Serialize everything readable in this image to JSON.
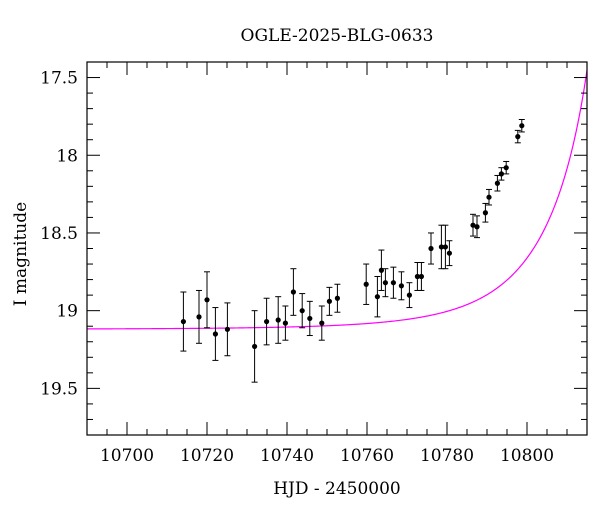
{
  "chart_data": {
    "type": "scatter",
    "title": "OGLE-2025-BLG-0633",
    "xlabel": "HJD - 2450000",
    "ylabel": "I magnitude",
    "xlim": [
      10690,
      10815
    ],
    "ylim": [
      19.8,
      17.4
    ],
    "y_inverted": true,
    "x_ticks": [
      10700,
      10720,
      10740,
      10760,
      10780,
      10800
    ],
    "x_tick_labels": [
      "10700",
      "10720",
      "10740",
      "10760",
      "10780",
      "10800"
    ],
    "y_ticks": [
      17.5,
      18,
      18.5,
      19,
      19.5
    ],
    "y_tick_labels": [
      "17.5",
      "18",
      "18.5",
      "19",
      "19.5"
    ],
    "grid": false,
    "series": [
      {
        "kind": "points_with_errorbars",
        "color": "#000000",
        "points": [
          {
            "x": 10714.1,
            "y": 19.07,
            "err": 0.19
          },
          {
            "x": 10718.0,
            "y": 19.04,
            "err": 0.17
          },
          {
            "x": 10720.0,
            "y": 18.93,
            "err": 0.18
          },
          {
            "x": 10722.1,
            "y": 19.15,
            "err": 0.17
          },
          {
            "x": 10725.1,
            "y": 19.12,
            "err": 0.17
          },
          {
            "x": 10731.9,
            "y": 19.23,
            "err": 0.23
          },
          {
            "x": 10734.9,
            "y": 19.07,
            "err": 0.15
          },
          {
            "x": 10737.8,
            "y": 19.06,
            "err": 0.15
          },
          {
            "x": 10739.6,
            "y": 19.08,
            "err": 0.11
          },
          {
            "x": 10741.6,
            "y": 18.88,
            "err": 0.15
          },
          {
            "x": 10743.8,
            "y": 19.0,
            "err": 0.11
          },
          {
            "x": 10745.7,
            "y": 19.05,
            "err": 0.11
          },
          {
            "x": 10748.7,
            "y": 19.08,
            "err": 0.11
          },
          {
            "x": 10750.6,
            "y": 18.94,
            "err": 0.09
          },
          {
            "x": 10752.6,
            "y": 18.92,
            "err": 0.09
          },
          {
            "x": 10759.8,
            "y": 18.83,
            "err": 0.13
          },
          {
            "x": 10762.6,
            "y": 18.91,
            "err": 0.13
          },
          {
            "x": 10763.6,
            "y": 18.74,
            "err": 0.13
          },
          {
            "x": 10764.6,
            "y": 18.82,
            "err": 0.09
          },
          {
            "x": 10766.6,
            "y": 18.82,
            "err": 0.1
          },
          {
            "x": 10768.6,
            "y": 18.84,
            "err": 0.09
          },
          {
            "x": 10770.6,
            "y": 18.9,
            "err": 0.08
          },
          {
            "x": 10772.6,
            "y": 18.78,
            "err": 0.09
          },
          {
            "x": 10773.6,
            "y": 18.78,
            "err": 0.09
          },
          {
            "x": 10776.0,
            "y": 18.6,
            "err": 0.1
          },
          {
            "x": 10778.6,
            "y": 18.59,
            "err": 0.14
          },
          {
            "x": 10779.6,
            "y": 18.59,
            "err": 0.14
          },
          {
            "x": 10780.6,
            "y": 18.63,
            "err": 0.08
          },
          {
            "x": 10786.5,
            "y": 18.45,
            "err": 0.07
          },
          {
            "x": 10787.5,
            "y": 18.46,
            "err": 0.07
          },
          {
            "x": 10789.6,
            "y": 18.37,
            "err": 0.06
          },
          {
            "x": 10790.5,
            "y": 18.27,
            "err": 0.05
          },
          {
            "x": 10792.6,
            "y": 18.18,
            "err": 0.05
          },
          {
            "x": 10793.6,
            "y": 18.12,
            "err": 0.04
          },
          {
            "x": 10794.8,
            "y": 18.08,
            "err": 0.04
          },
          {
            "x": 10797.7,
            "y": 17.88,
            "err": 0.04
          },
          {
            "x": 10798.7,
            "y": 17.81,
            "err": 0.04
          }
        ]
      },
      {
        "kind": "model_curve",
        "color": "#ff00ff",
        "model": {
          "baseline_mag": 19.12,
          "t0": 10820,
          "u0": 0.09,
          "tE": 25
        }
      }
    ]
  }
}
